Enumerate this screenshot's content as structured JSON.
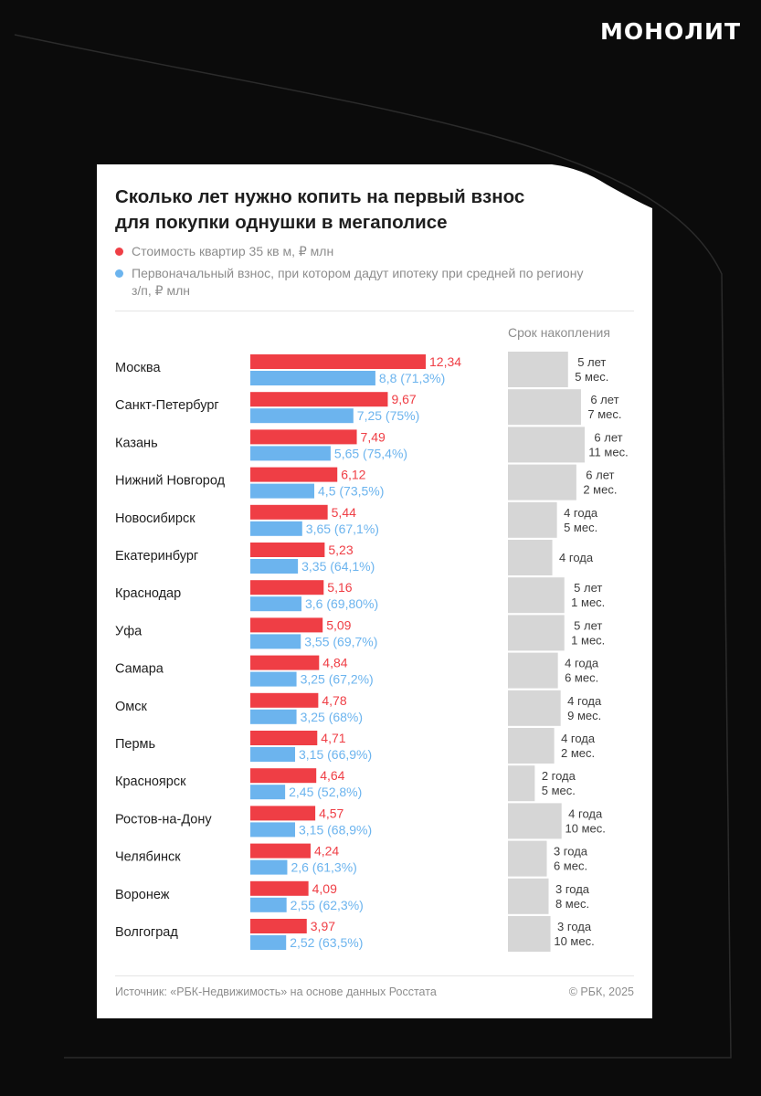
{
  "brand": "МОНОЛИТ",
  "colors": {
    "price": "#ef3e45",
    "down_payment": "#6cb4ee",
    "accumulation": "#d6d6d6"
  },
  "chart": {
    "title": "Сколько лет нужно копить на первый взнос\nдля покупки однушки в мегаполисе",
    "legend": [
      "Стоимость квартир 35 кв м, ₽ млн",
      "Первоначальный взнос, при котором дадут ипотеку при средней по региону з/п, ₽ млн"
    ],
    "accumulation_header": "Срок накопления",
    "source": "Источник: «РБК-Недвижимость» на основе данных Росстата",
    "copyright": "© РБК, 2025"
  },
  "chart_data": {
    "type": "bar",
    "categories": [
      "Москва",
      "Санкт-Петербург",
      "Казань",
      "Нижний Новгород",
      "Новосибирск",
      "Екатеринбург",
      "Краснодар",
      "Уфа",
      "Самара",
      "Омск",
      "Пермь",
      "Красноярск",
      "Ростов-на-Дону",
      "Челябинск",
      "Воронеж",
      "Волгоград"
    ],
    "series": [
      {
        "name": "Стоимость квартир 35 кв м, ₽ млн",
        "values": [
          12.34,
          9.67,
          7.49,
          6.12,
          5.44,
          5.23,
          5.16,
          5.09,
          4.84,
          4.78,
          4.71,
          4.64,
          4.57,
          4.24,
          4.09,
          3.97
        ],
        "labels": [
          "12,34",
          "9,67",
          "7,49",
          "6,12",
          "5,44",
          "5,23",
          "5,16",
          "5,09",
          "4,84",
          "4,78",
          "4,71",
          "4,64",
          "4,57",
          "4,24",
          "4,09",
          "3,97"
        ]
      },
      {
        "name": "Первоначальный взнос, при котором дадут ипотеку при средней по региону з/п, ₽ млн",
        "values": [
          8.8,
          7.25,
          5.65,
          4.5,
          3.65,
          3.35,
          3.6,
          3.55,
          3.25,
          3.25,
          3.15,
          2.45,
          3.15,
          2.6,
          2.55,
          2.52
        ],
        "labels": [
          "8,8 (71,3%)",
          "7,25 (75%)",
          "5,65 (75,4%)",
          "4,5 (73,5%)",
          "3,65 (67,1%)",
          "3,35 (64,1%)",
          "3,6 (69,80%)",
          "3,55 (69,7%)",
          "3,25 (67,2%)",
          "3,25 (68%)",
          "3,15 (66,9%)",
          "2,45 (52,8%)",
          "3,15 (68,9%)",
          "2,6 (61,3%)",
          "2,55 (62,3%)",
          "2,52 (63,5%)"
        ]
      },
      {
        "name": "Срок накопления",
        "values_months": [
          65,
          79,
          83,
          74,
          53,
          48,
          61,
          61,
          54,
          57,
          50,
          29,
          58,
          42,
          44,
          46
        ],
        "labels": [
          [
            "5 лет",
            "5 мес."
          ],
          [
            "6 лет",
            "7 мес."
          ],
          [
            "6 лет",
            "11 мес."
          ],
          [
            "6 лет",
            "2 мес."
          ],
          [
            "4 года",
            "5 мес."
          ],
          [
            "4 года"
          ],
          [
            "5 лет",
            "1 мес."
          ],
          [
            "5 лет",
            "1 мес."
          ],
          [
            "4 года",
            "6 мес."
          ],
          [
            "4 года",
            "9 мес."
          ],
          [
            "4 года",
            "2 мес."
          ],
          [
            "2 года",
            "5 мес."
          ],
          [
            "4 года",
            "10 мес."
          ],
          [
            "3 года",
            "6 мес."
          ],
          [
            "3 года",
            "8 мес."
          ],
          [
            "3 года",
            "10 мес."
          ]
        ]
      }
    ],
    "xlim": [
      0,
      12.34
    ],
    "grid": false,
    "legend_position": "top-left"
  }
}
